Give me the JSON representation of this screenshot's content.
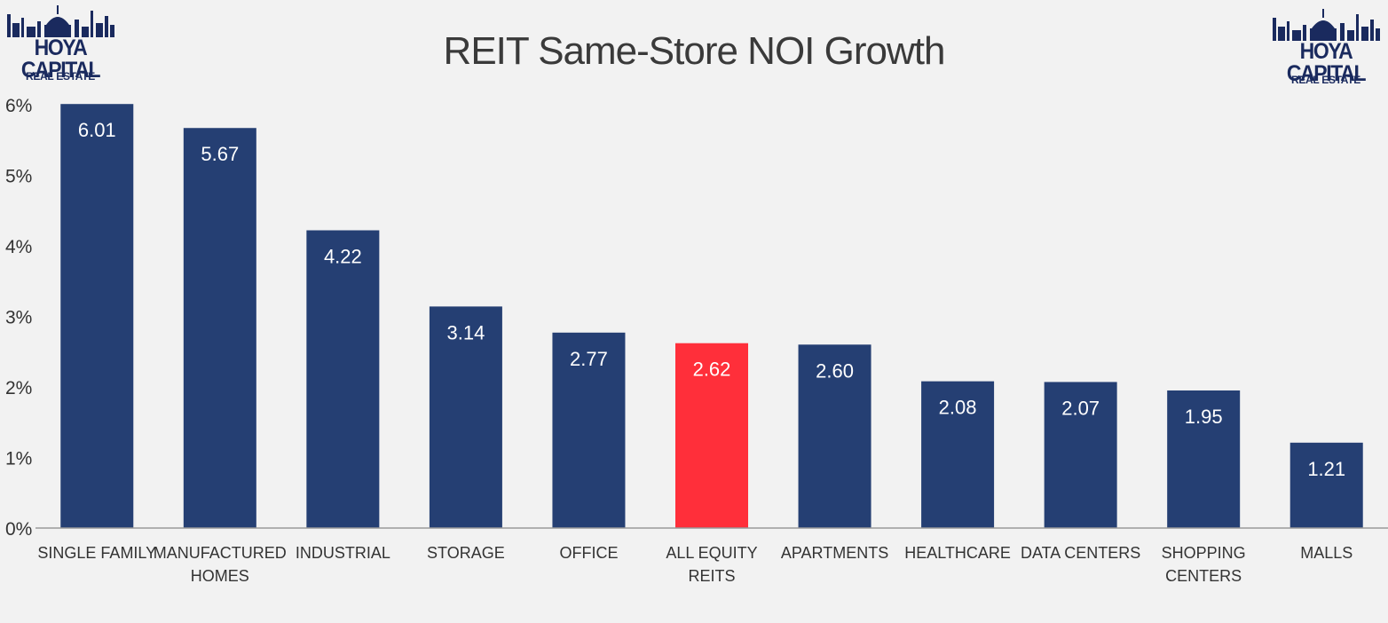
{
  "logos": {
    "left": {
      "name": "HOYA CAPITAL",
      "sub": "REAL ESTATE"
    },
    "right": {
      "name": "HOYA CAPITAL",
      "sub": "REAL ESTATE"
    }
  },
  "colors": {
    "bar": "#253f73",
    "highlight": "#ff2f3a",
    "background": "#f2f2f2",
    "text": "#333333",
    "bar_label": "#ffffff",
    "logo": "#1a2a5e"
  },
  "chart_data": {
    "type": "bar",
    "title": "REIT Same-Store NOI Growth",
    "xlabel": "",
    "ylabel": "",
    "ylim": [
      0,
      6
    ],
    "yticks": [
      0,
      1,
      2,
      3,
      4,
      5,
      6
    ],
    "ytick_labels": [
      "0%",
      "1%",
      "2%",
      "3%",
      "4%",
      "5%",
      "6%"
    ],
    "grid": false,
    "legend": "none",
    "categories": [
      [
        "SINGLE FAMILY"
      ],
      [
        "MANUFACTURED",
        "HOMES"
      ],
      [
        "INDUSTRIAL"
      ],
      [
        "STORAGE"
      ],
      [
        "OFFICE"
      ],
      [
        "ALL EQUITY",
        "REITS"
      ],
      [
        "APARTMENTS"
      ],
      [
        "HEALTHCARE"
      ],
      [
        "DATA CENTERS"
      ],
      [
        "SHOPPING",
        "CENTERS"
      ],
      [
        "MALLS"
      ]
    ],
    "values": [
      6.01,
      5.67,
      4.22,
      3.14,
      2.77,
      2.62,
      2.6,
      2.08,
      2.07,
      1.95,
      1.21
    ],
    "value_labels": [
      "6.01",
      "5.67",
      "4.22",
      "3.14",
      "2.77",
      "2.62",
      "2.60",
      "2.08",
      "2.07",
      "1.95",
      "1.21"
    ],
    "highlight_index": 5
  }
}
